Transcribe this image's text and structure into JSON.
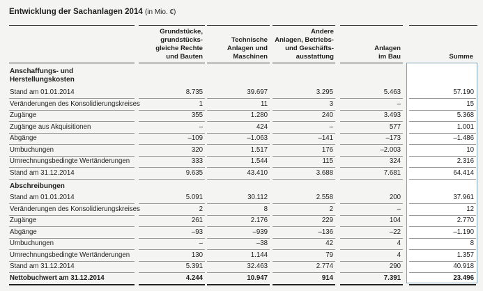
{
  "title": "Entwicklung der Sachanlagen 2014",
  "title_unit": "(in Mio. €)",
  "columns": [
    "Grundstücke,\ngrundstücks-\ngleiche Rechte\nund Bauten",
    "Technische\nAnlagen und\nMaschinen",
    "Andere\nAnlagen, Betriebs-\nund Geschäfts-\nausstattung",
    "Anlagen\nim Bau",
    "Summe"
  ],
  "sections": [
    {
      "heading": "Anschaffungs- und\nHerstellungskosten",
      "rows": [
        {
          "label": "Stand am 01.01.2014",
          "values": [
            "8.735",
            "39.697",
            "3.295",
            "5.463",
            "57.190"
          ]
        },
        {
          "label": "Veränderungen des Konsolidierungskreises",
          "values": [
            "1",
            "11",
            "3",
            "–",
            "15"
          ]
        },
        {
          "label": "Zugänge",
          "values": [
            "355",
            "1.280",
            "240",
            "3.493",
            "5.368"
          ]
        },
        {
          "label": "Zugänge aus Akquisitionen",
          "values": [
            "–",
            "424",
            "–",
            "577",
            "1.001"
          ]
        },
        {
          "label": "Abgänge",
          "values": [
            "–109",
            "–1.063",
            "–141",
            "–173",
            "–1.486"
          ]
        },
        {
          "label": "Umbuchungen",
          "values": [
            "320",
            "1.517",
            "176",
            "–2.003",
            "10"
          ]
        },
        {
          "label": "Umrechnungsbedingte Wertänderungen",
          "values": [
            "333",
            "1.544",
            "115",
            "324",
            "2.316"
          ]
        },
        {
          "label": "Stand am 31.12.2014",
          "values": [
            "9.635",
            "43.410",
            "3.688",
            "7.681",
            "64.414"
          ]
        }
      ]
    },
    {
      "heading": "Abschreibungen",
      "rows": [
        {
          "label": "Stand am 01.01.2014",
          "values": [
            "5.091",
            "30.112",
            "2.558",
            "200",
            "37.961"
          ]
        },
        {
          "label": "Veränderungen des Konsolidierungskreises",
          "values": [
            "2",
            "8",
            "2",
            "–",
            "12"
          ]
        },
        {
          "label": "Zugänge",
          "values": [
            "261",
            "2.176",
            "229",
            "104",
            "2.770"
          ]
        },
        {
          "label": "Abgänge",
          "values": [
            "–93",
            "–939",
            "–136",
            "–22",
            "–1.190"
          ]
        },
        {
          "label": "Umbuchungen",
          "values": [
            "–",
            "–38",
            "42",
            "4",
            "8"
          ]
        },
        {
          "label": "Umrechnungsbedingte Wertänderungen",
          "values": [
            "130",
            "1.144",
            "79",
            "4",
            "1.357"
          ]
        },
        {
          "label": "Stand am 31.12.2014",
          "values": [
            "5.391",
            "32.463",
            "2.774",
            "290",
            "40.918"
          ]
        }
      ]
    }
  ],
  "total": {
    "label": "Nettobuchwert am 31.12.2014",
    "values": [
      "4.244",
      "10.947",
      "914",
      "7.391",
      "23.496"
    ]
  }
}
